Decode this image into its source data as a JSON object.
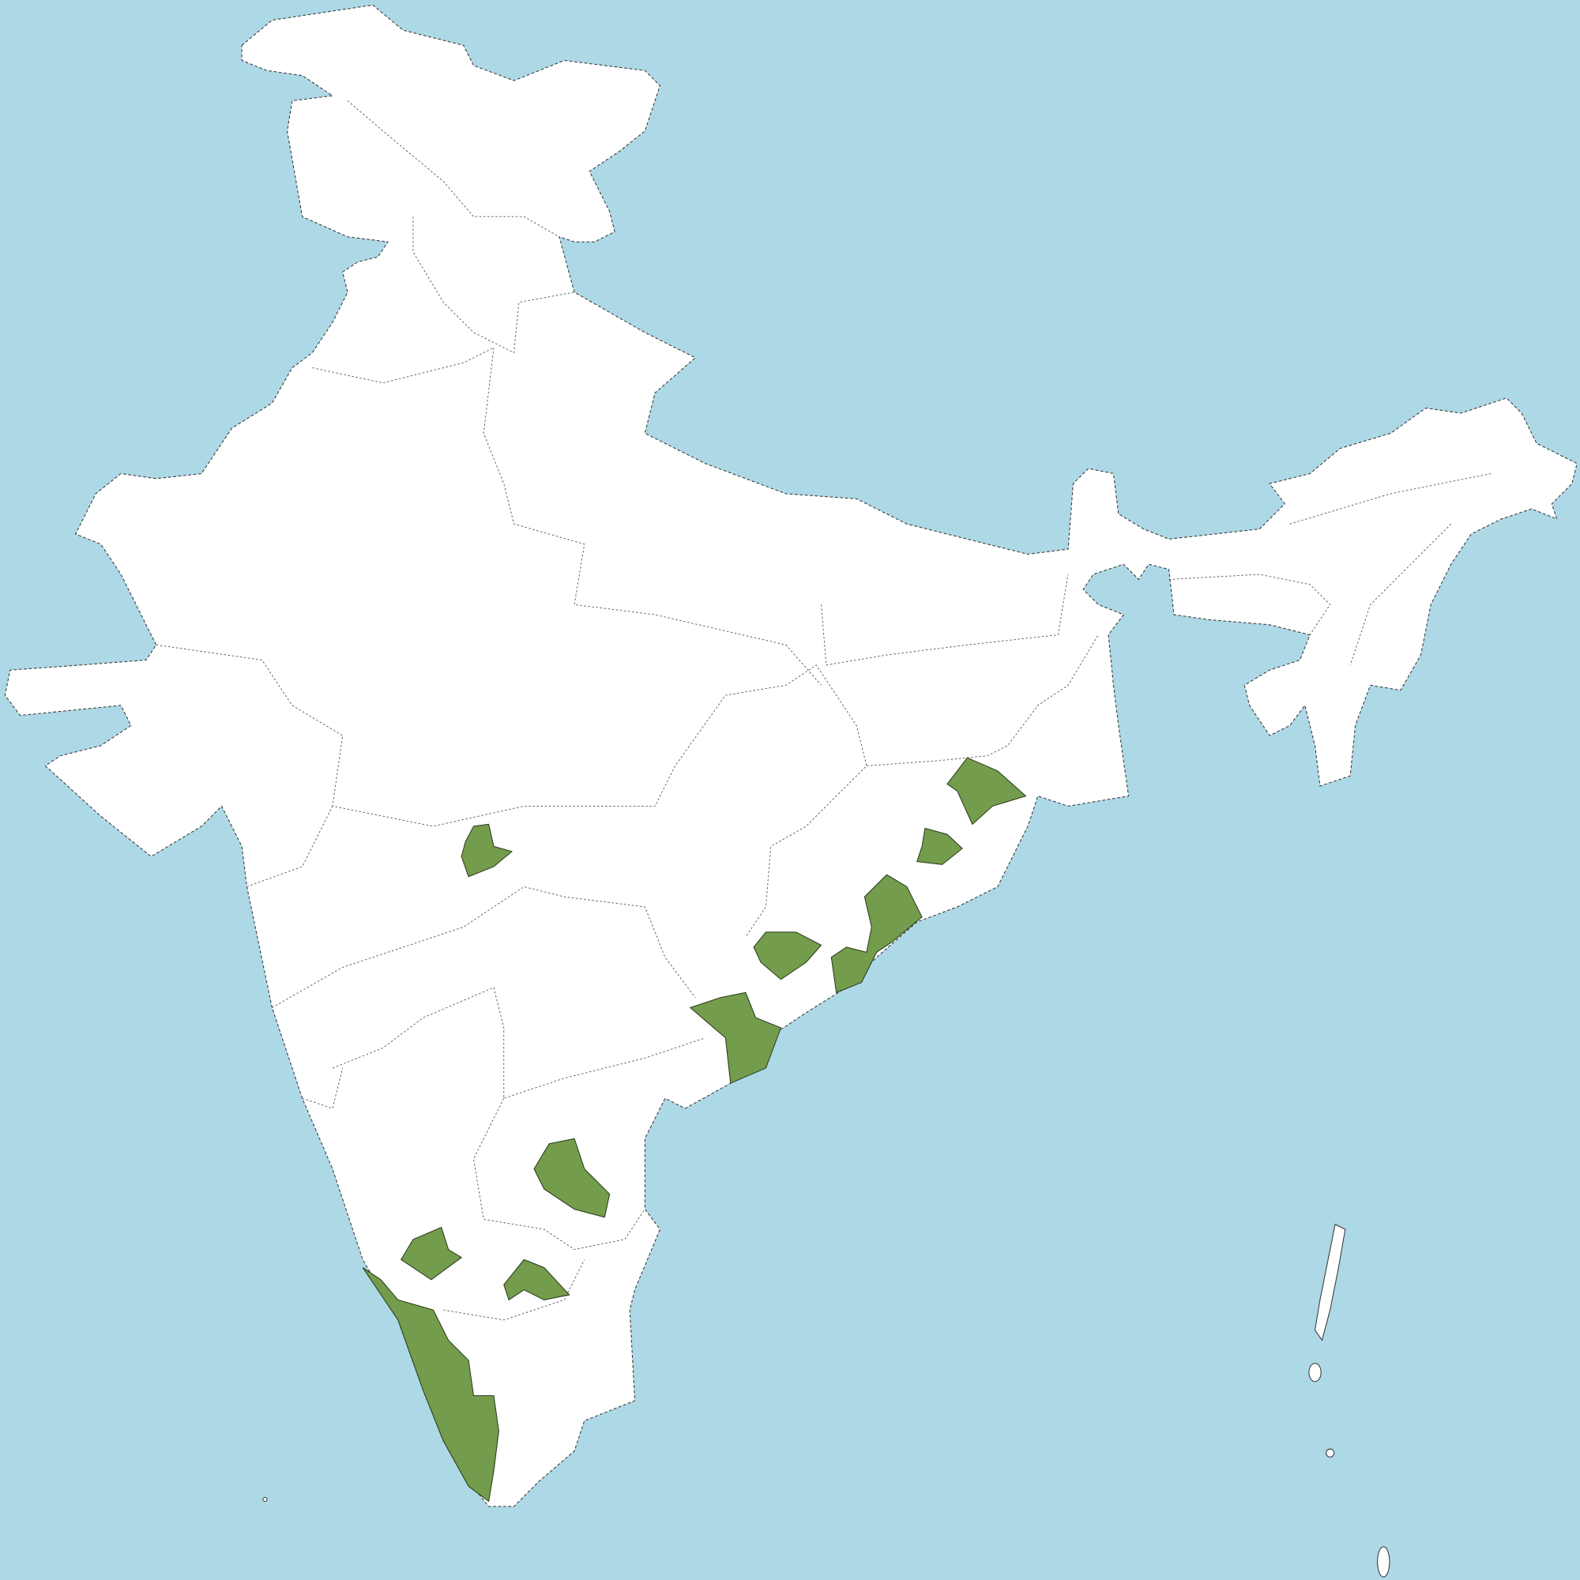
{
  "map": {
    "colors": {
      "water": "#add8e6",
      "land": "#ffffff",
      "highlighted": "#739c4c",
      "border": "#333333"
    }
  }
}
